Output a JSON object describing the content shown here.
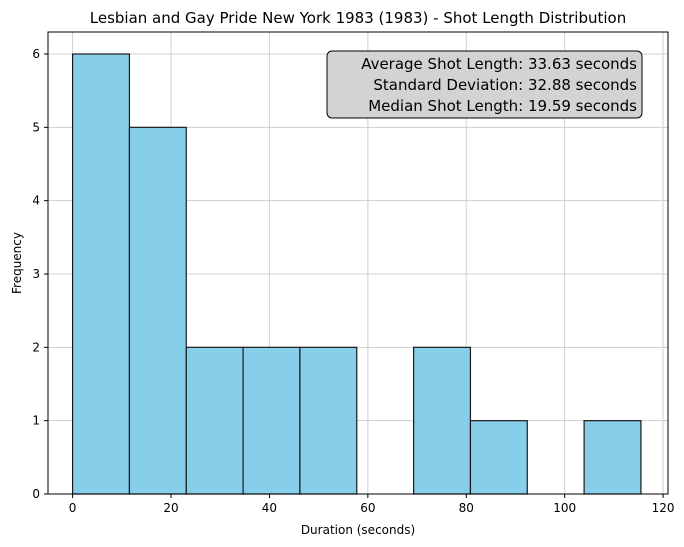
{
  "chart_data": {
    "type": "histogram",
    "title": "Lesbian and Gay Pride New York 1983 (1983) - Shot Length Distribution",
    "xlabel": "Duration (seconds)",
    "ylabel": "Frequency",
    "xlim": [
      -5,
      121
    ],
    "ylim": [
      0,
      6.3
    ],
    "xticks": [
      0,
      20,
      40,
      60,
      80,
      100,
      120
    ],
    "yticks": [
      0,
      1,
      2,
      3,
      4,
      5,
      6
    ],
    "grid": true,
    "bins": [
      {
        "start": 0.0,
        "end": 11.55,
        "count": 6
      },
      {
        "start": 11.55,
        "end": 23.1,
        "count": 5
      },
      {
        "start": 23.1,
        "end": 34.65,
        "count": 2
      },
      {
        "start": 34.65,
        "end": 46.2,
        "count": 2
      },
      {
        "start": 46.2,
        "end": 57.75,
        "count": 2
      },
      {
        "start": 57.75,
        "end": 69.3,
        "count": 0
      },
      {
        "start": 69.3,
        "end": 80.85,
        "count": 2
      },
      {
        "start": 80.85,
        "end": 92.4,
        "count": 1
      },
      {
        "start": 92.4,
        "end": 103.95,
        "count": 0
      },
      {
        "start": 103.95,
        "end": 115.5,
        "count": 1
      }
    ],
    "bar_color": "#87ceeb",
    "edge_color": "#1a1a1a",
    "stats_box": {
      "lines": [
        "Average Shot Length: 33.63 seconds",
        "Standard Deviation: 32.88 seconds",
        "Median Shot Length: 19.59 seconds"
      ],
      "placement": "top-right",
      "background": "#d3d3d3"
    }
  }
}
